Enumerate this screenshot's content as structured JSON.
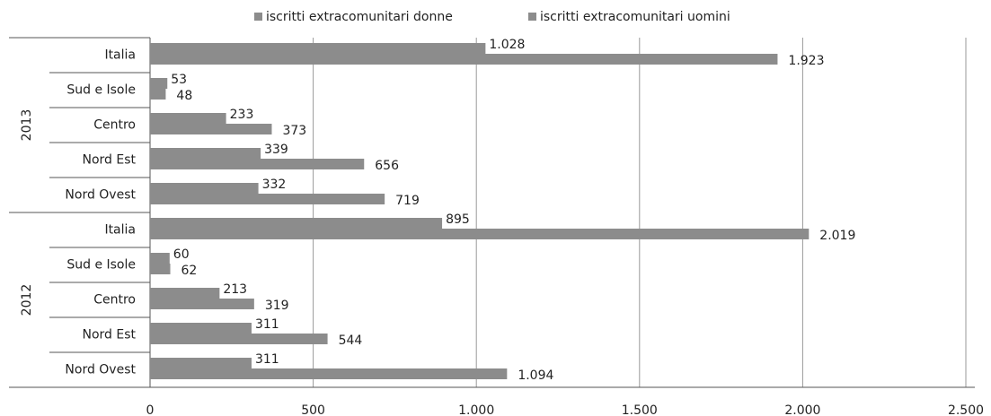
{
  "chart_data": {
    "type": "bar",
    "orientation": "horizontal",
    "groups": [
      {
        "label": "2013",
        "categories": [
          "Italia",
          "Sud e Isole",
          "Centro",
          "Nord Est",
          "Nord Ovest"
        ]
      },
      {
        "label": "2012",
        "categories": [
          "Italia",
          "Sud e Isole",
          "Centro",
          "Nord Est",
          "Nord Ovest"
        ]
      }
    ],
    "series": [
      {
        "name": "iscritti extracomunitari donne",
        "color": "#8c8c8c",
        "values": [
          [
            1028,
            53,
            233,
            339,
            332
          ],
          [
            895,
            60,
            213,
            311,
            311
          ]
        ],
        "value_labels": [
          [
            "1.028",
            "53",
            "233",
            "339",
            "332"
          ],
          [
            "895",
            "60",
            "213",
            "311",
            "311"
          ]
        ]
      },
      {
        "name": "iscritti extracomunitari uomini",
        "color": "#8c8c8c",
        "values": [
          [
            1923,
            48,
            373,
            656,
            719
          ],
          [
            2019,
            62,
            319,
            544,
            1094
          ]
        ],
        "value_labels": [
          [
            "1.923",
            "48",
            "373",
            "656",
            "719"
          ],
          [
            "2.019",
            "62",
            "319",
            "544",
            "1.094"
          ]
        ]
      }
    ],
    "xlim": [
      0,
      2500
    ],
    "xticks": [
      0,
      500,
      {
        "value": 1000,
        "label": "1.000"
      },
      {
        "value": 1500,
        "label": "1.500"
      },
      {
        "value": 2000,
        "label": "2.000"
      },
      {
        "value": 2500,
        "label": "2.500"
      }
    ],
    "grid": true,
    "legend": "top"
  }
}
